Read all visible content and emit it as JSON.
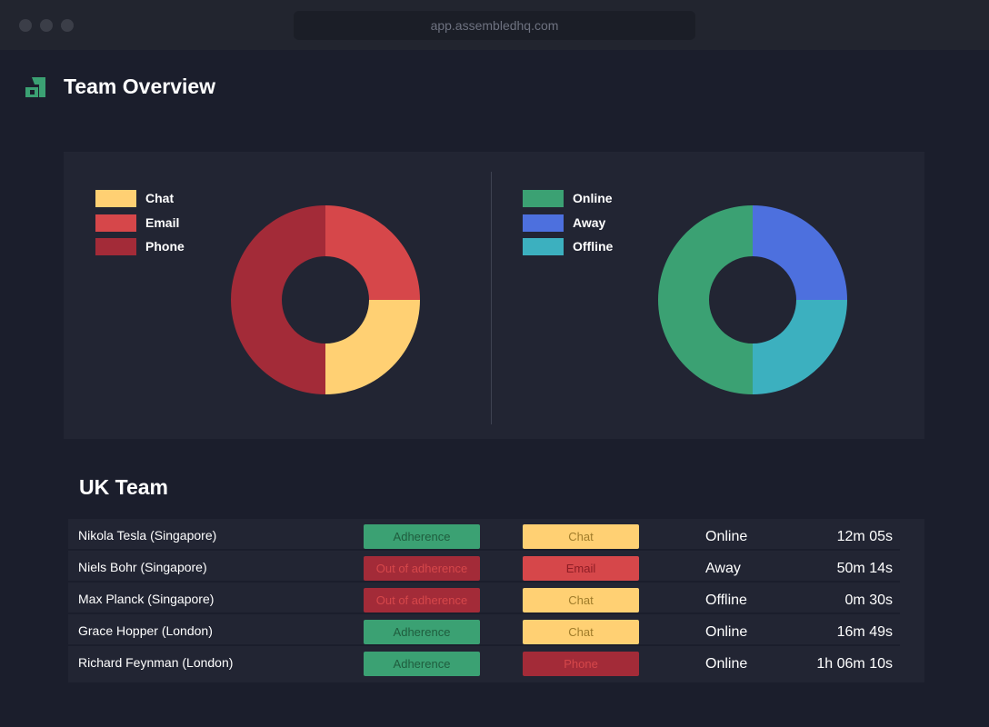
{
  "browser": {
    "url": "app.assembledhq.com"
  },
  "header": {
    "title": "Team Overview",
    "logo_icon": "assembled-logo-icon"
  },
  "colors": {
    "chat": "#ffd073",
    "email": "#d6474a",
    "phone": "#a32b38",
    "online": "#3ba173",
    "away": "#4d70de",
    "offline": "#3cb0bf",
    "adherence_text": "#1f5d3e",
    "out_of_adherence_text": "#d6474a",
    "chat_text": "#a07c2a",
    "email_text": "#8e1d25",
    "phone_text": "#d6474a"
  },
  "chart_data": [
    {
      "type": "pie",
      "donut": true,
      "categories": [
        "Chat",
        "Email",
        "Phone"
      ],
      "values": [
        25,
        25,
        50
      ],
      "colors": [
        "#ffd073",
        "#d6474a",
        "#a32b38"
      ],
      "legend": "top-left"
    },
    {
      "type": "pie",
      "donut": true,
      "categories": [
        "Online",
        "Away",
        "Offline"
      ],
      "values": [
        50,
        25,
        25
      ],
      "colors": [
        "#3ba173",
        "#4d70de",
        "#3cb0bf"
      ],
      "legend": "top-left"
    }
  ],
  "team": {
    "title": "UK Team",
    "rows": [
      {
        "name": "Nikola Tesla (Singapore)",
        "adherence": "Adherence",
        "adherence_type": "ok",
        "channel": "Chat",
        "status": "Online",
        "time": "12m 05s"
      },
      {
        "name": "Niels Bohr (Singapore)",
        "adherence": "Out of adherence",
        "adherence_type": "out",
        "channel": "Email",
        "status": "Away",
        "time": "50m 14s"
      },
      {
        "name": "Max Planck (Singapore)",
        "adherence": "Out of adherence",
        "adherence_type": "out",
        "channel": "Chat",
        "status": "Offline",
        "time": "0m 30s"
      },
      {
        "name": "Grace Hopper (London)",
        "adherence": "Adherence",
        "adherence_type": "ok",
        "channel": "Chat",
        "status": "Online",
        "time": "16m 49s"
      },
      {
        "name": "Richard Feynman (London)",
        "adherence": "Adherence",
        "adherence_type": "ok",
        "channel": "Phone",
        "status": "Online",
        "time": "1h 06m 10s"
      }
    ]
  }
}
